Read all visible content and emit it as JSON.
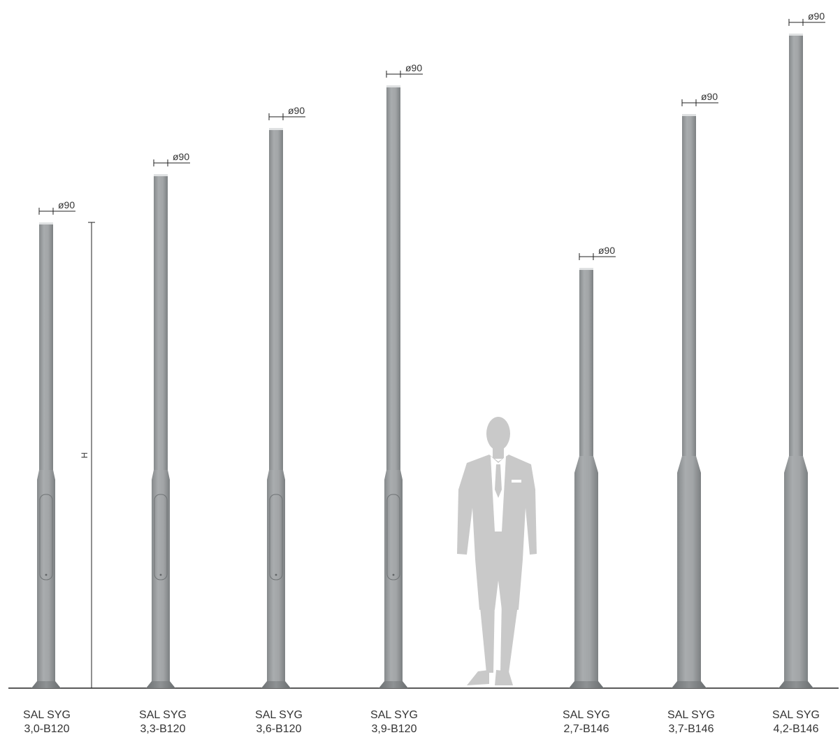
{
  "diagram": {
    "height_marker_label": "H",
    "diameter_label": "ø90",
    "poles": [
      {
        "name_line1": "SAL SYG",
        "name_line2": "3,0-B120"
      },
      {
        "name_line1": "SAL SYG",
        "name_line2": "3,3-B120"
      },
      {
        "name_line1": "SAL SYG",
        "name_line2": "3,6-B120"
      },
      {
        "name_line1": "SAL SYG",
        "name_line2": "3,9-B120"
      },
      {
        "name_line1": "SAL SYG",
        "name_line2": "2,7-B146"
      },
      {
        "name_line1": "SAL SYG",
        "name_line2": "3,7-B146"
      },
      {
        "name_line1": "SAL SYG",
        "name_line2": "4,2-B146"
      }
    ]
  },
  "colors": {
    "pole": "#9a9d9f",
    "pole_dark": "#7f8284",
    "pole_light": "#b3b6b8",
    "person": "#c9c9c9",
    "line": "#222222",
    "text": "#333333"
  }
}
